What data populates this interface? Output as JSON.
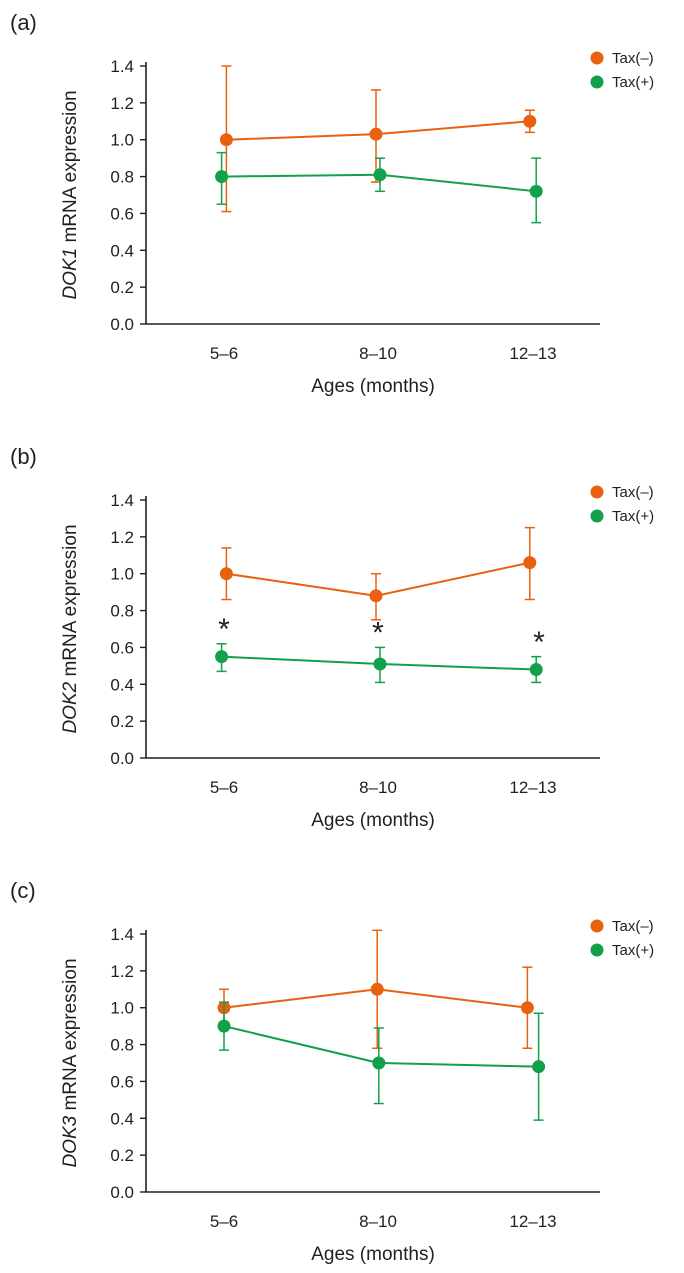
{
  "colors": {
    "tax_neg": "#E8610F",
    "tax_pos": "#13A04A",
    "axis": "#231F20"
  },
  "chart_data": [
    {
      "type": "line",
      "panel_label": "(a)",
      "gene": "DOK1",
      "ylabel_rest": " mRNA expression",
      "xlabel": "Ages (months)",
      "categories": [
        "5–6",
        "8–10",
        "12–13"
      ],
      "ylim": [
        0,
        1.4
      ],
      "yticks": [
        "0.0",
        "0.2",
        "0.4",
        "0.6",
        "0.8",
        "1.0",
        "1.2",
        "1.4"
      ],
      "legend_position": "top-right",
      "series": [
        {
          "name": "Tax(–)",
          "color": "#E8610F",
          "values": [
            1.0,
            1.03,
            1.1
          ],
          "err_low": [
            0.61,
            0.77,
            1.04
          ],
          "err_high": [
            1.4,
            1.27,
            1.16
          ]
        },
        {
          "name": "Tax(+)",
          "color": "#13A04A",
          "values": [
            0.8,
            0.81,
            0.72
          ],
          "err_low": [
            0.65,
            0.72,
            0.55
          ],
          "err_high": [
            0.93,
            0.9,
            0.9
          ]
        }
      ],
      "annotations": []
    },
    {
      "type": "line",
      "panel_label": "(b)",
      "gene": "DOK2",
      "ylabel_rest": " mRNA expression",
      "xlabel": "Ages (months)",
      "categories": [
        "5–6",
        "8–10",
        "12–13"
      ],
      "ylim": [
        0,
        1.4
      ],
      "yticks": [
        "0.0",
        "0.2",
        "0.4",
        "0.6",
        "0.8",
        "1.0",
        "1.2",
        "1.4"
      ],
      "legend_position": "top-right",
      "series": [
        {
          "name": "Tax(–)",
          "color": "#E8610F",
          "values": [
            1.0,
            0.88,
            1.06
          ],
          "err_low": [
            0.86,
            0.75,
            0.86
          ],
          "err_high": [
            1.14,
            1.0,
            1.25
          ]
        },
        {
          "name": "Tax(+)",
          "color": "#13A04A",
          "values": [
            0.55,
            0.51,
            0.48
          ],
          "err_low": [
            0.47,
            0.41,
            0.41
          ],
          "err_high": [
            0.62,
            0.6,
            0.55
          ]
        }
      ],
      "annotations": [
        {
          "text": "*",
          "category_index": 0,
          "y": 0.7
        },
        {
          "text": "*",
          "category_index": 1,
          "y": 0.68
        },
        {
          "text": "*",
          "category_index": 2,
          "y": 0.63
        }
      ]
    },
    {
      "type": "line",
      "panel_label": "(c)",
      "gene": "DOK3",
      "ylabel_rest": "  mRNA expression",
      "xlabel": "Ages (months)",
      "categories": [
        "5–6",
        "8–10",
        "12–13"
      ],
      "ylim": [
        0,
        1.4
      ],
      "yticks": [
        "0.0",
        "0.2",
        "0.4",
        "0.6",
        "0.8",
        "1.0",
        "1.2",
        "1.4"
      ],
      "legend_position": "top-right",
      "series": [
        {
          "name": "Tax(–)",
          "color": "#E8610F",
          "values": [
            1.0,
            1.1,
            1.0
          ],
          "err_low": [
            0.89,
            0.78,
            0.78
          ],
          "err_high": [
            1.1,
            1.42,
            1.22
          ]
        },
        {
          "name": "Tax(+)",
          "color": "#13A04A",
          "values": [
            0.9,
            0.7,
            0.68
          ],
          "err_low": [
            0.77,
            0.48,
            0.39
          ],
          "err_high": [
            1.03,
            0.89,
            0.97
          ]
        }
      ],
      "annotations": []
    }
  ]
}
